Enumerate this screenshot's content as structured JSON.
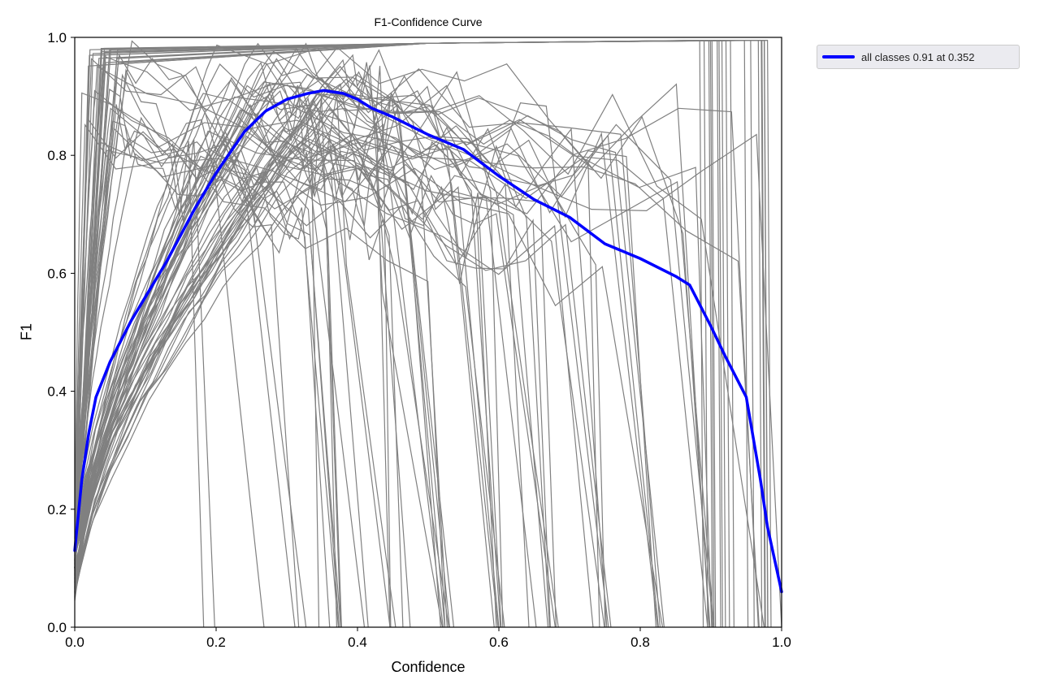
{
  "chart_data": {
    "type": "line",
    "title": "F1-Confidence Curve",
    "xlabel": "Confidence",
    "ylabel": "F1",
    "xlim": [
      0.0,
      1.0
    ],
    "ylim": [
      0.0,
      1.0
    ],
    "x_ticks": [
      "0.0",
      "0.2",
      "0.4",
      "0.6",
      "0.8",
      "1.0"
    ],
    "y_ticks": [
      "0.0",
      "0.2",
      "0.4",
      "0.6",
      "0.8",
      "1.0"
    ],
    "grid": false,
    "legend_position": "outside upper right",
    "legend": [
      {
        "label": "all classes 0.91 at 0.352",
        "color": "#0000ff"
      }
    ],
    "series": [
      {
        "name": "all classes",
        "color": "#0000ff",
        "linewidth": 3,
        "x": [
          0.0,
          0.01,
          0.02,
          0.03,
          0.05,
          0.08,
          0.1,
          0.13,
          0.17,
          0.2,
          0.24,
          0.27,
          0.3,
          0.33,
          0.352,
          0.38,
          0.4,
          0.42,
          0.45,
          0.5,
          0.55,
          0.6,
          0.65,
          0.7,
          0.75,
          0.8,
          0.85,
          0.87,
          0.9,
          0.92,
          0.95,
          0.97,
          0.98,
          1.0
        ],
        "y": [
          0.13,
          0.25,
          0.33,
          0.39,
          0.45,
          0.52,
          0.56,
          0.62,
          0.71,
          0.77,
          0.84,
          0.875,
          0.895,
          0.905,
          0.91,
          0.905,
          0.895,
          0.88,
          0.865,
          0.835,
          0.81,
          0.765,
          0.725,
          0.695,
          0.65,
          0.625,
          0.595,
          0.58,
          0.51,
          0.46,
          0.39,
          0.25,
          0.17,
          0.06
        ]
      }
    ],
    "background_series": {
      "description": "per-class F1 curves",
      "color": "#808080",
      "linewidth": 1
    },
    "best": {
      "f1": 0.91,
      "confidence": 0.352
    }
  },
  "legend": {
    "label": "all classes 0.91 at 0.352"
  }
}
